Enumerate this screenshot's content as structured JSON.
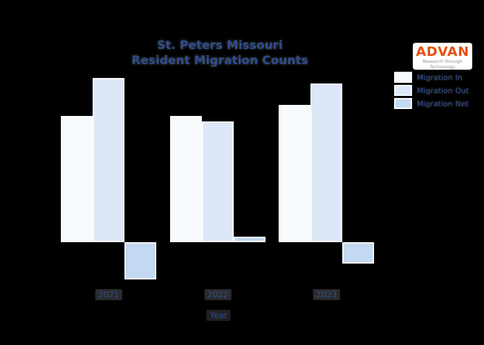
{
  "page": {
    "background": "#000000",
    "text_color": "#2e4d8e"
  },
  "header": {
    "title_line1": "St. Peters Missouri",
    "title_line2": "Resident Migration Counts"
  },
  "logo": {
    "brand": "ADVAN",
    "tagline": "Research through Technology",
    "brand_color": "#e8500f",
    "tagline_color": "#8f8f8f",
    "background": "#ffffff"
  },
  "legend": {
    "position": "upper right",
    "items": [
      {
        "label": "Migration In",
        "color": "#f7fafd"
      },
      {
        "label": "Migration Out",
        "color": "#dce8f7"
      },
      {
        "label": "Migration Net",
        "color": "#c3d9f1"
      }
    ]
  },
  "x_axis": {
    "label": "Year",
    "tick_labels": [
      "2021",
      "2022",
      "2023"
    ]
  },
  "chart_data": {
    "type": "bar",
    "title": "St. Peters Missouri Resident Migration Counts",
    "categories": [
      "2021",
      "2022",
      "2023"
    ],
    "series": [
      {
        "name": "Migration In",
        "color": "#f7fafd",
        "values": [
          183,
          183,
          199
        ]
      },
      {
        "name": "Migration Out",
        "color": "#dce8f7",
        "values": [
          238,
          175,
          230
        ]
      },
      {
        "name": "Migration Net",
        "color": "#c3d9f1",
        "values": [
          -54,
          8,
          -31
        ]
      }
    ],
    "xlabel": "Year",
    "ylabel": "",
    "grid": false,
    "legend_position": "upper right",
    "y_axis_labels_visible": false,
    "value_units": "relative bar height in px (no y-axis scale shown in image)",
    "baseline": 0
  }
}
